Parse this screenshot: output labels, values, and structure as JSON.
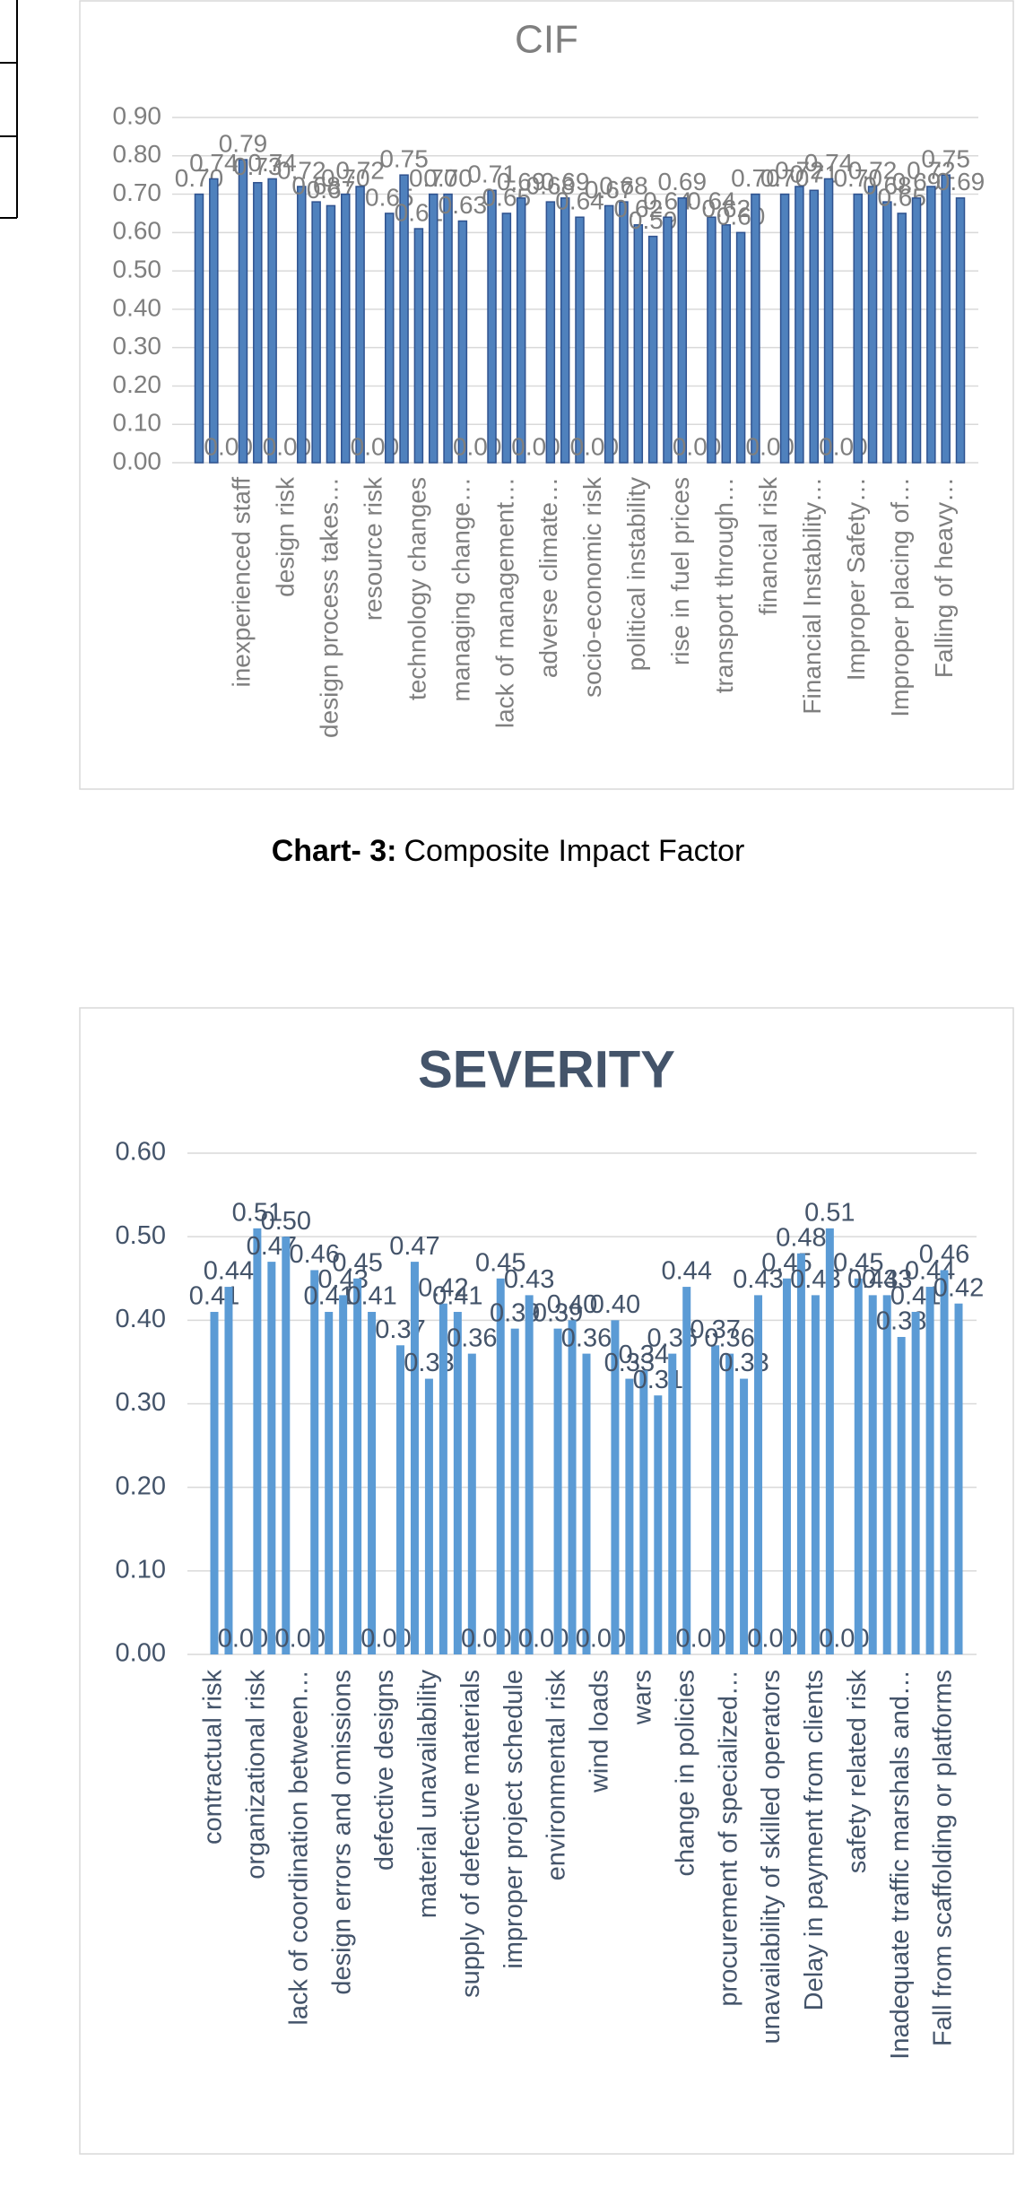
{
  "chart_data": [
    {
      "type": "bar",
      "title": "CIF",
      "categories": [
        null,
        null,
        null,
        "inexperienced staff",
        null,
        null,
        "design risk",
        null,
        null,
        "design process takes…",
        null,
        null,
        "resource risk",
        null,
        null,
        "technology changes",
        null,
        null,
        "managing change…",
        null,
        null,
        "lack of management…",
        null,
        null,
        "adverse climate…",
        null,
        null,
        "socio-economic risk",
        null,
        null,
        "political instability",
        null,
        null,
        "rise in fuel prices",
        null,
        null,
        "transport through…",
        null,
        null,
        "financial risk",
        null,
        null,
        "Financial Instability…",
        null,
        null,
        "Improper Safety…",
        null,
        null,
        "Improper placing of…",
        null,
        null,
        "Falling of heavy…",
        null
      ],
      "values": [
        0.7,
        0.74,
        0,
        0.79,
        0.73,
        0.74,
        0,
        0.72,
        0.68,
        0.67,
        0.7,
        0.72,
        0,
        0.65,
        0.75,
        0.61,
        0.7,
        0.7,
        0.63,
        0,
        0.71,
        0.65,
        0.69,
        0,
        0.68,
        0.69,
        0.64,
        0,
        0.67,
        0.68,
        0.62,
        0.59,
        0.64,
        0.69,
        0,
        0.64,
        0.62,
        0.6,
        0.7,
        0,
        0.7,
        0.72,
        0.71,
        0.74,
        0,
        0.7,
        0.72,
        0.68,
        0.65,
        0.69,
        0.72,
        0.75,
        0.69
      ],
      "value_labels": [
        "0.70",
        "0.74",
        "0.00",
        "0.79",
        "0.73",
        "0.74",
        "0.00",
        "0.72",
        "0.68",
        "0.67",
        "0.70",
        "0.72",
        "0.00",
        "0.65",
        "0.75",
        "0.61",
        "0.70",
        "0.70",
        "0.63",
        "0.00",
        "0.71",
        "0.65",
        "0.69",
        "0.00",
        "0.68",
        "0.69",
        "0.64",
        "0.00",
        "0.67",
        "0.68",
        "0.62",
        "0.59",
        "0.64",
        "0.69",
        "0.00",
        "0.64",
        "0.62",
        "0.60",
        "0.70",
        "0.00",
        "0.70",
        "0.72",
        "0.71",
        "0.74",
        "0.00",
        "0.70",
        "0.72",
        "0.68",
        "0.65",
        "0.69",
        "0.72",
        "0.75",
        "0.69"
      ],
      "color": "#4f81bd",
      "ylim": [
        0,
        0.9
      ],
      "yticks": [
        {
          "value": 0,
          "label": "0.00"
        },
        {
          "value": 0.1,
          "label": "0.10"
        },
        {
          "value": 0.2,
          "label": "0.20"
        },
        {
          "value": 0.3,
          "label": "0.30"
        },
        {
          "value": 0.4,
          "label": "0.40"
        },
        {
          "value": 0.5,
          "label": "0.50"
        },
        {
          "value": 0.6,
          "label": "0.60"
        },
        {
          "value": 0.7,
          "label": "0.70"
        },
        {
          "value": 0.8,
          "label": "0.80"
        },
        {
          "value": 0.9,
          "label": "0.90"
        }
      ],
      "grid": true
    },
    {
      "type": "bar",
      "title": "SEVERITY",
      "categories": [
        "contractual risk",
        null,
        null,
        "organizational risk",
        null,
        null,
        "lack of coordination between…",
        null,
        null,
        "design errors and omissions",
        null,
        null,
        "defective designs",
        null,
        null,
        "material unavailability",
        null,
        null,
        "supply of defective materials",
        null,
        null,
        "improper project schedule",
        null,
        null,
        "environmental risk",
        null,
        null,
        "wind loads",
        null,
        null,
        "wars",
        null,
        null,
        "change in policies",
        null,
        null,
        "procurement of specialized…",
        null,
        null,
        "unavailability of skilled operators",
        null,
        null,
        "Delay in payment from clients",
        null,
        null,
        "safety related risk",
        null,
        null,
        "Inadequate traffic marshals and…",
        null,
        null,
        "Fall from scaffolding or platforms",
        null
      ],
      "values": [
        0.41,
        0.44,
        0,
        0.51,
        0.47,
        0.5,
        0,
        0.46,
        0.41,
        0.43,
        0.45,
        0.41,
        0,
        0.37,
        0.47,
        0.33,
        0.42,
        0.41,
        0.36,
        0,
        0.45,
        0.39,
        0.43,
        0,
        0.39,
        0.4,
        0.36,
        0,
        0.4,
        0.33,
        0.34,
        0.31,
        0.36,
        0.44,
        0,
        0.37,
        0.36,
        0.33,
        0.43,
        0,
        0.45,
        0.48,
        0.43,
        0.51,
        0,
        0.45,
        0.43,
        0.43,
        0.38,
        0.41,
        0.44,
        0.46,
        0.42
      ],
      "value_labels": [
        "0.41",
        "0.44",
        "0.00",
        "0.51",
        "0.47",
        "0.50",
        "0.00",
        "0.46",
        "0.41",
        "0.43",
        "0.45",
        "0.41",
        "0.00",
        "0.37",
        "0.47",
        "0.33",
        "0.42",
        "0.41",
        "0.36",
        "0.00",
        "0.45",
        "0.39",
        "0.43",
        "0.00",
        "0.39",
        "0.40",
        "0.36",
        "0.00",
        "0.40",
        "0.33",
        "0.34",
        "0.31",
        "0.36",
        "0.44",
        "0.00",
        "0.37",
        "0.36",
        "0.33",
        "0.43",
        "0.00",
        "0.45",
        "0.48",
        "0.43",
        "0.51",
        "0.00",
        "0.45",
        "0.43",
        "0.43",
        "0.38",
        "0.41",
        "0.44",
        "0.46",
        "0.42"
      ],
      "color": "#5b9bd5",
      "ylim": [
        0,
        0.6
      ],
      "yticks": [
        {
          "value": 0,
          "label": "0.00"
        },
        {
          "value": 0.1,
          "label": "0.10"
        },
        {
          "value": 0.2,
          "label": "0.20"
        },
        {
          "value": 0.3,
          "label": "0.30"
        },
        {
          "value": 0.4,
          "label": "0.40"
        },
        {
          "value": 0.5,
          "label": "0.50"
        },
        {
          "value": 0.6,
          "label": "0.60"
        }
      ],
      "grid": true
    }
  ],
  "caption": {
    "label": "Chart- 3:",
    "text": "Composite Impact Factor"
  }
}
